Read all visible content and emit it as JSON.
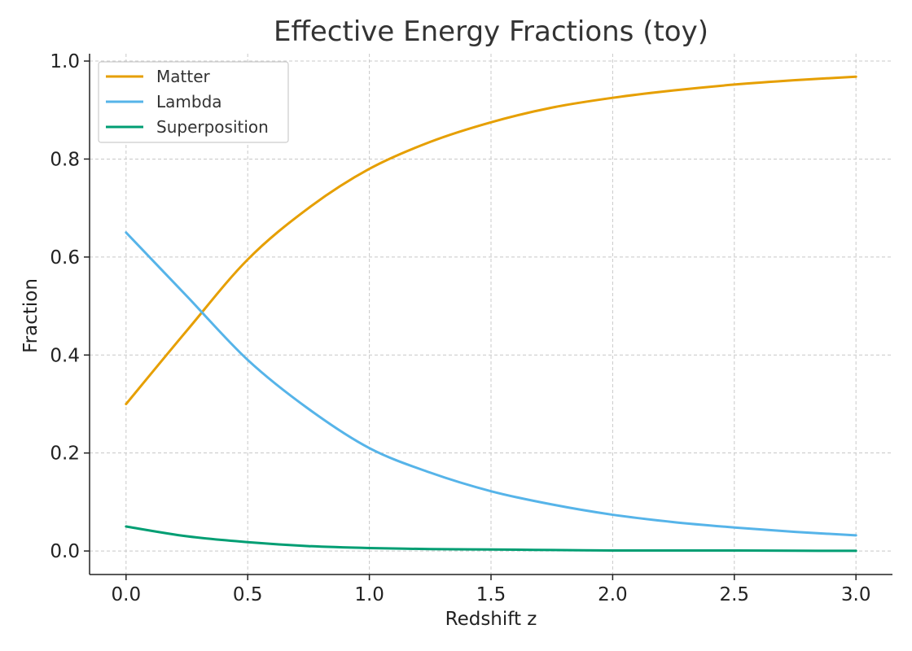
{
  "chart_data": {
    "type": "line",
    "title": "Effective Energy Fractions (toy)",
    "xlabel": "Redshift z",
    "ylabel": "Fraction",
    "xlim": [
      -0.15,
      3.15
    ],
    "ylim": [
      -0.048,
      1.015
    ],
    "x_ticks": [
      0.0,
      0.5,
      1.0,
      1.5,
      2.0,
      2.5,
      3.0
    ],
    "x_tick_labels": [
      "0.0",
      "0.5",
      "1.0",
      "1.5",
      "2.0",
      "2.5",
      "3.0"
    ],
    "y_ticks": [
      0.0,
      0.2,
      0.4,
      0.6,
      0.8,
      1.0
    ],
    "y_tick_labels": [
      "0.0",
      "0.2",
      "0.4",
      "0.6",
      "0.8",
      "1.0"
    ],
    "grid": true,
    "legend_position": "top-left",
    "x": [
      0.0,
      0.25,
      0.5,
      0.75,
      1.0,
      1.25,
      1.5,
      1.75,
      2.0,
      2.25,
      2.5,
      2.75,
      3.0
    ],
    "series": [
      {
        "name": "Matter",
        "color": "#E69F00",
        "values": [
          0.3,
          0.45,
          0.595,
          0.7,
          0.78,
          0.835,
          0.875,
          0.905,
          0.925,
          0.94,
          0.952,
          0.961,
          0.968
        ]
      },
      {
        "name": "Lambda",
        "color": "#56B4E9",
        "values": [
          0.65,
          0.52,
          0.39,
          0.29,
          0.21,
          0.16,
          0.122,
          0.095,
          0.074,
          0.059,
          0.048,
          0.039,
          0.032
        ]
      },
      {
        "name": "Superposition",
        "color": "#009E73",
        "values": [
          0.05,
          0.03,
          0.018,
          0.01,
          0.006,
          0.004,
          0.003,
          0.002,
          0.001,
          0.001,
          0.001,
          0.0005,
          0.0003
        ]
      }
    ]
  }
}
